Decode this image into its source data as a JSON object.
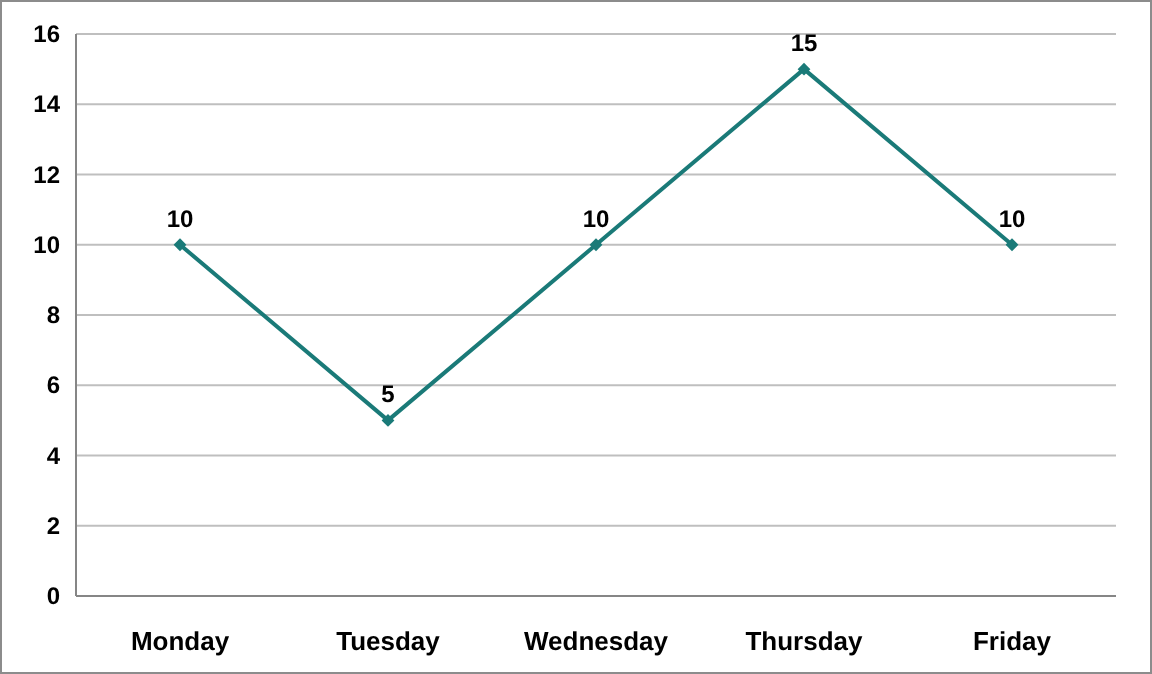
{
  "chart_data": {
    "type": "line",
    "categories": [
      "Monday",
      "Tuesday",
      "Wednesday",
      "Thursday",
      "Friday"
    ],
    "series": [
      {
        "color": "#1a7a78",
        "values": [
          10,
          5,
          10,
          15,
          10
        ]
      }
    ],
    "ylim": [
      0,
      16
    ],
    "yticks": [
      0,
      2,
      4,
      6,
      8,
      10,
      12,
      14,
      16
    ],
    "grid": "y",
    "marker": "diamond",
    "data_labels": true
  }
}
